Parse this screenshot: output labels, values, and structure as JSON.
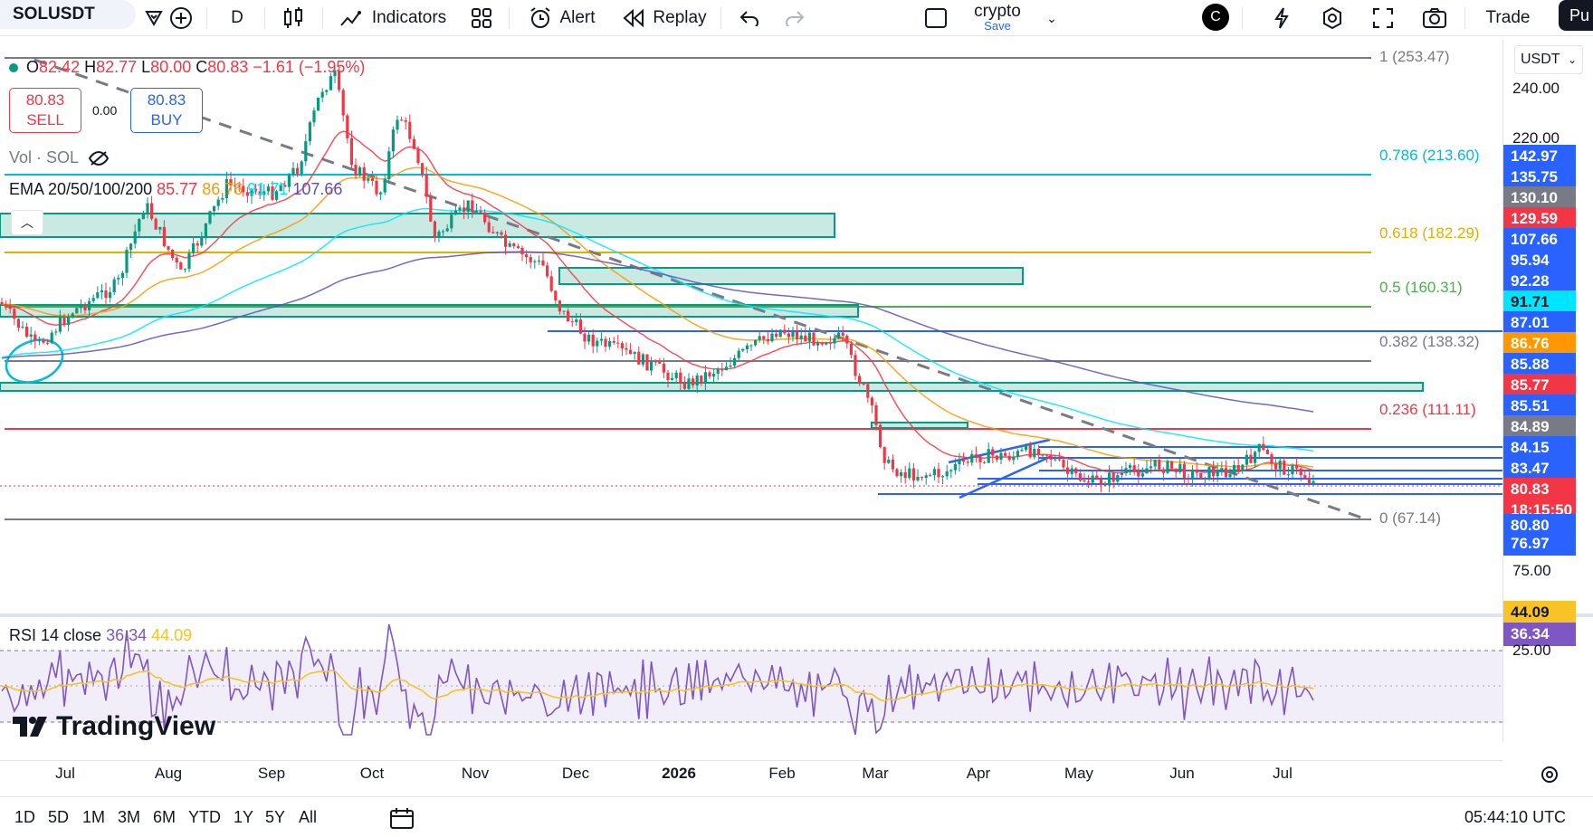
{
  "toolbar": {
    "symbol": "SOLUSDT",
    "interval": "D",
    "indicators_label": "Indicators",
    "alert_label": "Alert",
    "replay_label": "Replay",
    "layout_name": "crypto",
    "save_label": "Save",
    "avatar_letter": "C",
    "trade_label": "Trade",
    "publish_label": "Pu"
  },
  "legend": {
    "dot_color": "#089981",
    "open_label": "O",
    "open": "82.42",
    "high_label": "H",
    "high": "82.77",
    "low_label": "L",
    "low": "80.00",
    "close_label": "C",
    "close": "80.83",
    "change": "−1.61 (−1.95%)",
    "sell_price": "80.83",
    "sell_label": "SELL",
    "spread": "0.00",
    "buy_price": "80.83",
    "buy_label": "BUY",
    "vol_label": "Vol · SOL",
    "ema_label": "EMA 20/50/100/200",
    "ema20": "85.77",
    "ema50": "86.76",
    "ema100": "91.71",
    "ema200": "107.66",
    "rsi_label": "RSI 14 close",
    "rsi_value": "36.34",
    "rsi_ma": "44.09"
  },
  "fib_levels": [
    {
      "label": "1 (253.47)",
      "color": "#787b86"
    },
    {
      "label": "0.786 (213.60)",
      "color": "#00bcd4"
    },
    {
      "label": "0.618 (182.29)",
      "color": "#e0b000"
    },
    {
      "label": "0.5 (160.31)",
      "color": "#4caf50"
    },
    {
      "label": "0.382 (138.32)",
      "color": "#787b86"
    },
    {
      "label": "0.236 (111.11)",
      "color": "#f23645"
    },
    {
      "label": "0 (67.14)",
      "color": "#787b86"
    }
  ],
  "price_scale": {
    "currency": "USDT",
    "plain_ticks": [
      "240.00",
      "220.00"
    ],
    "labels": [
      {
        "text": "142.97",
        "bg": "#2962ff"
      },
      {
        "text": "135.75",
        "bg": "#2962ff"
      },
      {
        "text": "130.10",
        "bg": "#787b86"
      },
      {
        "text": "129.59",
        "bg": "#f23645"
      },
      {
        "text": "107.66",
        "bg": "#2962ff"
      },
      {
        "text": "95.94",
        "bg": "#2962ff"
      },
      {
        "text": "92.28",
        "bg": "#2962ff"
      },
      {
        "text": "91.71",
        "bg": "#00e5ff"
      },
      {
        "text": "87.01",
        "bg": "#2962ff"
      },
      {
        "text": "86.76",
        "bg": "#ff9800"
      },
      {
        "text": "85.88",
        "bg": "#2962ff"
      },
      {
        "text": "85.77",
        "bg": "#f23645"
      },
      {
        "text": "85.51",
        "bg": "#2962ff"
      },
      {
        "text": "84.89",
        "bg": "#787b86"
      },
      {
        "text": "84.15",
        "bg": "#2962ff"
      },
      {
        "text": "83.47",
        "bg": "#2962ff"
      },
      {
        "text": "80.83",
        "bg": "#f23645"
      },
      {
        "text": "18:15:50",
        "bg": "#f23645"
      },
      {
        "text": "80.80",
        "bg": "#2962ff"
      },
      {
        "text": "76.97",
        "bg": "#2962ff"
      }
    ],
    "rsi_ticks": [
      "75.00",
      "25.00"
    ],
    "rsi_ma_label": "44.09",
    "rsi_value_label": "36.34"
  },
  "time_axis": [
    "Jul",
    "Aug",
    "Sep",
    "Oct",
    "Nov",
    "Dec",
    "2026",
    "Feb",
    "Mar",
    "Apr",
    "May",
    "Jun",
    "Jul"
  ],
  "bottom_bar": {
    "timeframes": [
      "1D",
      "5D",
      "1M",
      "3M",
      "6M",
      "YTD",
      "1Y",
      "5Y",
      "All"
    ],
    "clock": "05:44:10 UTC"
  },
  "watermark": "TradingView",
  "colors": {
    "up": "#089981",
    "down": "#f23645",
    "ema20": "#f23645",
    "ema50": "#ff9800",
    "ema100": "#00e5ff",
    "ema200": "#5b4fbf",
    "rsi": "#7e57c2",
    "rsi_ma": "#f7c325"
  }
}
